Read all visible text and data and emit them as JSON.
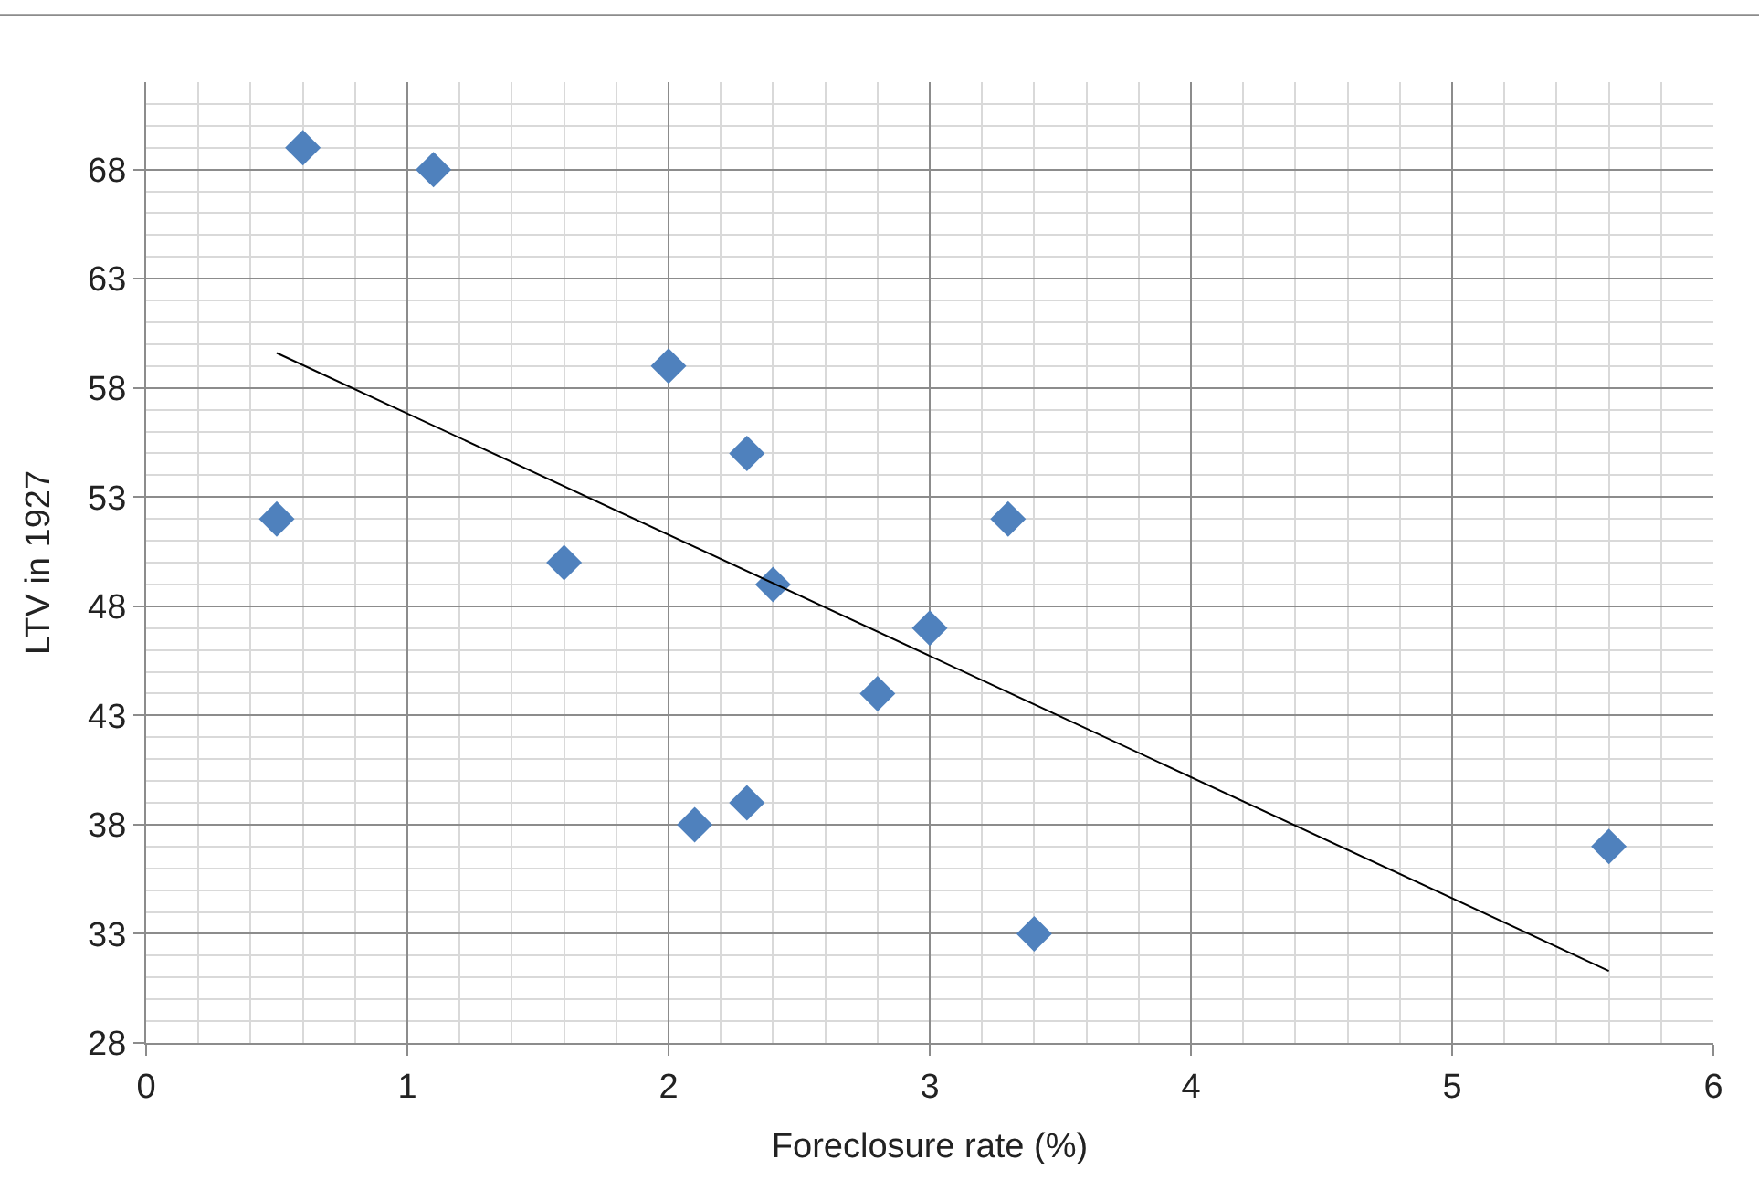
{
  "chart_data": {
    "type": "scatter",
    "xlabel": "Foreclosure rate (%)",
    "ylabel": "LTV in 1927",
    "x": [
      0.6,
      1.1,
      0.5,
      1.6,
      2.0,
      2.3,
      2.4,
      2.1,
      2.3,
      2.8,
      3.0,
      3.3,
      3.4,
      5.6
    ],
    "series": [
      {
        "color": "#4f81bd",
        "values": [
          69,
          68,
          52,
          50,
          59,
          55,
          49,
          38,
          39,
          44,
          47,
          52,
          33,
          37
        ],
        "marker": "diamond"
      },
      {
        "type": "line",
        "color": "#000000",
        "x": [
          0.5,
          5.6
        ],
        "values": [
          59.6,
          31.3
        ],
        "marker": "none",
        "line_style": "solid"
      }
    ],
    "xlim": [
      0,
      6
    ],
    "xticks": [
      0,
      1,
      2,
      3,
      4,
      5,
      6
    ],
    "ylim": [
      28,
      72
    ],
    "yticks": [
      28,
      33,
      38,
      43,
      48,
      53,
      58,
      63,
      68
    ],
    "grid": true,
    "legend": false
  }
}
